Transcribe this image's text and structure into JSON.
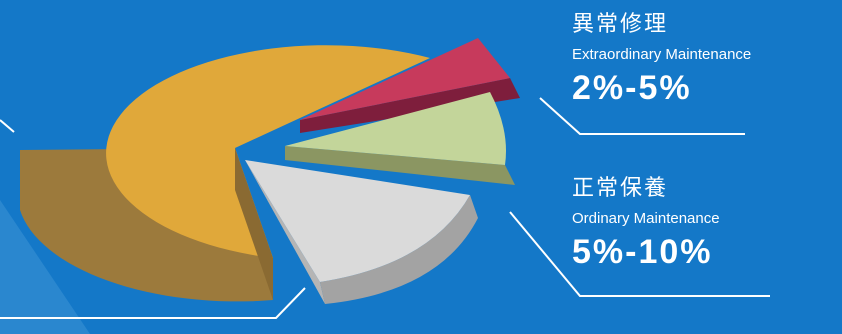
{
  "chart_data": {
    "type": "pie",
    "title": "",
    "slices": [
      {
        "key": "major",
        "label": "",
        "value": 80,
        "color": "#e0a83a",
        "side": "#9c7a3c"
      },
      {
        "key": "extraordinary",
        "label_cn": "異常修理",
        "label_en": "Extraordinary Maintenance",
        "range": "2%-5%",
        "value": 3.5,
        "color": "#c73a5c",
        "side": "#7e1e3c"
      },
      {
        "key": "ordinary_green",
        "label": "",
        "value": 7.5,
        "color": "#c3d59a",
        "side": "#8b9662"
      },
      {
        "key": "ordinary_white",
        "label_cn": "正常保養",
        "label_en": "Ordinary Maintenance",
        "range": "5%-10%",
        "value": 7.5,
        "color": "#dadada",
        "side": "#a3a3a3"
      }
    ]
  },
  "labels": {
    "extraordinary": {
      "cn": "異常修理",
      "en": "Extraordinary Maintenance",
      "pct": "2%-5%"
    },
    "ordinary": {
      "cn": "正常保養",
      "en": "Ordinary Maintenance",
      "pct": "5%-10%"
    }
  },
  "colors": {
    "background": "#1478c8",
    "leader": "#ffffff"
  }
}
